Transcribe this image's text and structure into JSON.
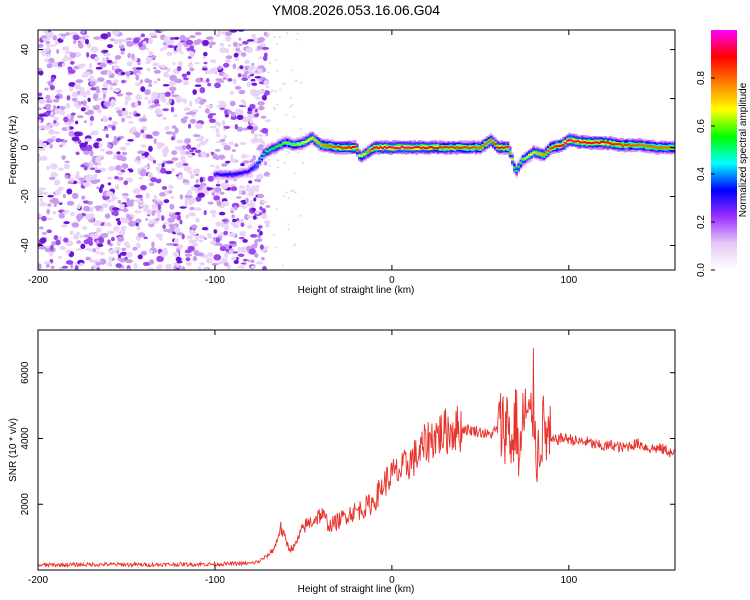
{
  "title": "YM08.2026.053.16.06.G04",
  "chart_data": [
    {
      "type": "heatmap",
      "name": "spectrogram",
      "xlabel": "Height of straight line (km)",
      "ylabel": "Frequency (Hz)",
      "xlim": [
        -200,
        160
      ],
      "ylim": [
        -50,
        48
      ],
      "xticks": [
        -200,
        -100,
        0,
        100
      ],
      "yticks": [
        -40,
        -20,
        0,
        20,
        40
      ],
      "colorbar": {
        "label": "Normalized spectral amplitude",
        "range": [
          0,
          1
        ],
        "ticks": [
          0.0,
          0.2,
          0.4,
          0.6,
          0.8
        ],
        "tick_labels": [
          "0.0",
          "0.2",
          "0.4",
          "0.6",
          "0.8"
        ],
        "colors": [
          "#ffffff",
          "#e6c8f5",
          "#9b30ff",
          "#0000ff",
          "#00ffff",
          "#00ff00",
          "#ffff00",
          "#ff8000",
          "#ff0000",
          "#ff00ff"
        ]
      },
      "noise_region": [
        -200,
        -70
      ],
      "ridge": {
        "x": [
          -100,
          -90,
          -82,
          -76,
          -72,
          -66,
          -60,
          -55,
          -50,
          -45,
          -40,
          -30,
          -20,
          -18,
          -10,
          0,
          10,
          20,
          30,
          40,
          50,
          56,
          60,
          66,
          70,
          74,
          80,
          86,
          90,
          96,
          100,
          110,
          120,
          130,
          140,
          150,
          160
        ],
        "freq": [
          -11,
          -11,
          -10,
          -7,
          -2,
          0,
          2,
          1,
          2,
          4,
          1,
          0,
          0,
          -4,
          0,
          0,
          0,
          0,
          0,
          0,
          0,
          3,
          0,
          0,
          -10,
          -5,
          -2,
          -3,
          0,
          1,
          3,
          2,
          2,
          1,
          1,
          0,
          0
        ],
        "amp": [
          0.3,
          0.35,
          0.3,
          0.4,
          0.5,
          0.55,
          0.6,
          0.6,
          0.65,
          0.7,
          0.75,
          0.85,
          0.9,
          0.6,
          0.9,
          0.95,
          0.95,
          0.9,
          0.85,
          0.85,
          0.8,
          0.8,
          0.9,
          0.85,
          0.5,
          0.6,
          0.7,
          0.75,
          0.85,
          0.9,
          0.95,
          0.9,
          0.9,
          0.85,
          0.8,
          0.8,
          0.8
        ]
      }
    },
    {
      "type": "line",
      "name": "snr",
      "xlabel": "Height of straight line (km)",
      "ylabel": "SNR (10 * v/v)",
      "xlim": [
        -200,
        160
      ],
      "ylim": [
        0,
        7300
      ],
      "xticks": [
        -200,
        -100,
        0,
        100
      ],
      "yticks": [
        2000,
        4000,
        6000
      ],
      "color": "#e8322b",
      "series": [
        {
          "name": "SNR",
          "x": [
            -200,
            -180,
            -160,
            -140,
            -120,
            -100,
            -90,
            -80,
            -75,
            -70,
            -66,
            -63,
            -60,
            -58,
            -55,
            -50,
            -45,
            -40,
            -35,
            -30,
            -25,
            -20,
            -15,
            -10,
            -5,
            0,
            5,
            10,
            15,
            20,
            25,
            30,
            35,
            40,
            45,
            50,
            55,
            60,
            63,
            66,
            68,
            70,
            72,
            75,
            78,
            80,
            82,
            85,
            90,
            95,
            100,
            105,
            110,
            115,
            120,
            125,
            130,
            135,
            140,
            145,
            150,
            155,
            160
          ],
          "y": [
            150,
            160,
            170,
            160,
            170,
            180,
            190,
            200,
            260,
            450,
            700,
            1300,
            900,
            650,
            700,
            1300,
            1500,
            1700,
            1350,
            1500,
            1700,
            1800,
            1900,
            2100,
            2600,
            2900,
            3000,
            3300,
            3500,
            3900,
            4100,
            4200,
            4300,
            4300,
            4250,
            4200,
            4100,
            4300,
            4400,
            4500,
            3600,
            4800,
            3300,
            4900,
            4300,
            5300,
            3400,
            4300,
            3900,
            4000,
            4000,
            3900,
            3900,
            3800,
            3750,
            3800,
            3700,
            3800,
            3850,
            3700,
            3700,
            3650,
            3500
          ]
        }
      ]
    }
  ]
}
